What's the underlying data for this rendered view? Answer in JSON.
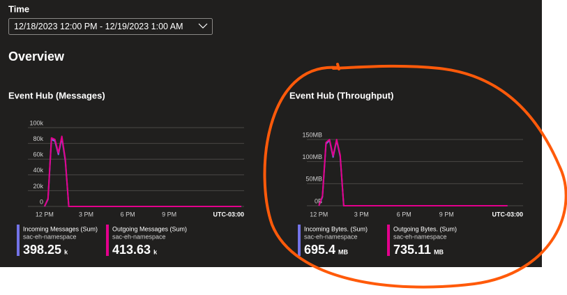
{
  "time": {
    "label": "Time",
    "value": "12/18/2023 12:00 PM - 12/19/2023 1:00 AM"
  },
  "overview": {
    "title": "Overview"
  },
  "chart_data": [
    {
      "type": "line",
      "title": "Event Hub (Messages)",
      "x": [
        0,
        0.25,
        0.5,
        0.75,
        1,
        1.25,
        1.5,
        1.75,
        14.2
      ],
      "xlim": [
        -1.2,
        14.4
      ],
      "xticks": [
        {
          "value": 0,
          "label": "12 PM"
        },
        {
          "value": 3,
          "label": "3 PM"
        },
        {
          "value": 6,
          "label": "6 PM"
        },
        {
          "value": 9,
          "label": "9 PM"
        }
      ],
      "timezone": "UTC-03:00",
      "ylim": [
        0,
        100000
      ],
      "yticks": [
        0,
        {
          "value": 20000,
          "label": "20k"
        },
        {
          "value": 40000,
          "label": "40k"
        },
        {
          "value": 60000,
          "label": "60k"
        },
        {
          "value": 80000,
          "label": "80k"
        },
        {
          "value": 100000,
          "label": "100k"
        }
      ],
      "grid": true,
      "series": [
        {
          "name": "Incoming Messages (Sum)",
          "resource": "sac-eh-namespace",
          "color": "#7373e8",
          "values": [
            0,
            9000,
            85000,
            83000,
            66000,
            87000,
            58000,
            0,
            0
          ],
          "total": 398.25,
          "total_unit": "k"
        },
        {
          "name": "Outgoing Messages (Sum)",
          "resource": "sac-eh-namespace",
          "color": "#e3008c",
          "values": [
            0,
            10000,
            87000,
            85000,
            68000,
            89000,
            60000,
            0,
            0
          ],
          "total": 413.63,
          "total_unit": "k"
        }
      ]
    },
    {
      "type": "line",
      "title": "Event Hub (Throughput)",
      "x": [
        0,
        0.25,
        0.5,
        0.75,
        1,
        1.25,
        1.5,
        1.75,
        13.3
      ],
      "xlim": [
        -0.85,
        14.4
      ],
      "xticks": [
        {
          "value": 0,
          "label": "12 PM"
        },
        {
          "value": 3,
          "label": "3 PM"
        },
        {
          "value": 6,
          "label": "6 PM"
        },
        {
          "value": 9,
          "label": "9 PM"
        }
      ],
      "timezone": "UTC-03:00",
      "ylim": [
        0,
        150
      ],
      "yticks": [
        {
          "value": 0,
          "label": "0B"
        },
        {
          "value": 50,
          "label": "50MB"
        },
        {
          "value": 100,
          "label": "100MB"
        },
        {
          "value": 150,
          "label": "150MB"
        }
      ],
      "grid": true,
      "series": [
        {
          "name": "Incoming Bytes. (Sum)",
          "resource": "sac-eh-namespace",
          "color": "#7373e8",
          "values": [
            0,
            20,
            140,
            148,
            110,
            148,
            112,
            0,
            0
          ],
          "total": 695.4,
          "total_unit": "MB"
        },
        {
          "name": "Outgoing Bytes. (Sum)",
          "resource": "sac-eh-namespace",
          "color": "#e3008c",
          "values": [
            0,
            22,
            143,
            150,
            113,
            150,
            115,
            0,
            0
          ],
          "total": 735.11,
          "total_unit": "MB"
        }
      ]
    }
  ]
}
